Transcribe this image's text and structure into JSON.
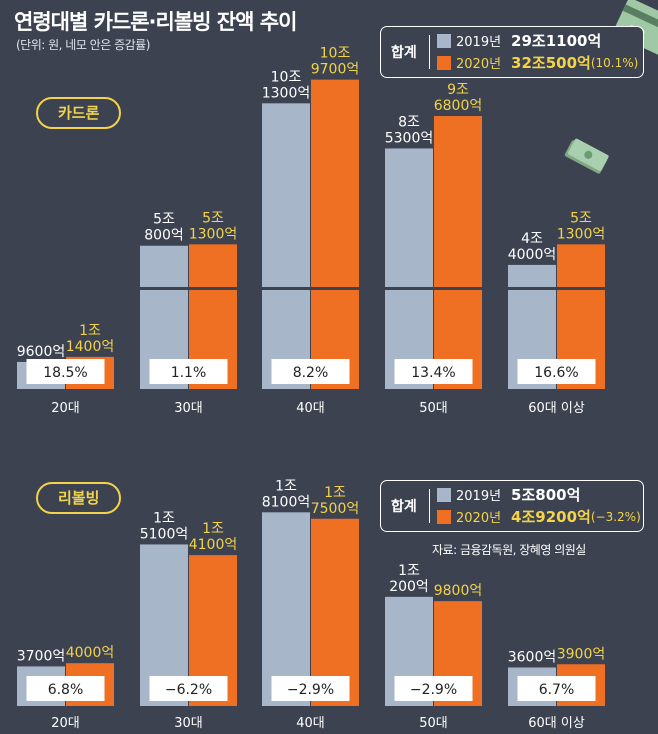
{
  "header": {
    "title": "연령대별 카드론·리볼빙 잔액 추이",
    "subtitle": "(단위: 원, 네모 안은 증감률)"
  },
  "source": "자료: 금융감독원, 장혜영 의원실",
  "colors": {
    "y2019": "#a8b6ca",
    "y2020": "#ef6f23",
    "accent": "#f3d34a",
    "background": "#3c4250"
  },
  "chart_data": [
    {
      "type": "bar",
      "title": "카드론",
      "categories": [
        "20대",
        "30대",
        "40대",
        "50대",
        "60대 이상"
      ],
      "series": [
        {
          "name": "2019년",
          "values": [
            0.96,
            5.08,
            10.13,
            8.53,
            4.4
          ],
          "labels": [
            "9600억",
            "5조|800억",
            "10조|1300억",
            "8조|5300억",
            "4조|4000억"
          ]
        },
        {
          "name": "2020년",
          "values": [
            1.14,
            5.13,
            10.97,
            9.68,
            5.13
          ],
          "labels": [
            "1조|1400억",
            "5조|1300억",
            "10조|9700억",
            "9조|6800억",
            "5조|1300억"
          ]
        }
      ],
      "growth": [
        "18.5%",
        "1.1%",
        "8.2%",
        "13.4%",
        "16.6%"
      ],
      "units": "조원",
      "legend": {
        "title": "합계",
        "rows": [
          {
            "year": "2019년",
            "value": "29조1100억",
            "pct": ""
          },
          {
            "year": "2020년",
            "value": "32조500억",
            "pct": "(10.1%)"
          }
        ]
      }
    },
    {
      "type": "bar",
      "title": "리볼빙",
      "categories": [
        "20대",
        "30대",
        "40대",
        "50대",
        "60대 이상"
      ],
      "series": [
        {
          "name": "2019년",
          "values": [
            0.37,
            1.51,
            1.81,
            1.02,
            0.36
          ],
          "labels": [
            "3700억",
            "1조|5100억",
            "1조|8100억",
            "1조|200억",
            "3600억"
          ]
        },
        {
          "name": "2020년",
          "values": [
            0.4,
            1.41,
            1.75,
            0.98,
            0.39
          ],
          "labels": [
            "4000억",
            "1조|4100억",
            "1조|7500억",
            "9800억",
            "3900억"
          ]
        }
      ],
      "growth": [
        "6.8%",
        "−6.2%",
        "−2.9%",
        "−2.9%",
        "6.7%"
      ],
      "units": "조원",
      "legend": {
        "title": "합계",
        "rows": [
          {
            "year": "2019년",
            "value": "5조800억",
            "pct": ""
          },
          {
            "year": "2020년",
            "value": "4조9200억",
            "pct": "(−3.2%)"
          }
        ]
      }
    }
  ]
}
